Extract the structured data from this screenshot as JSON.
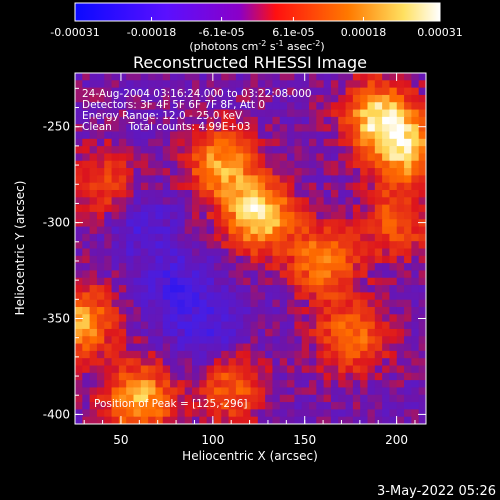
{
  "colorbar": {
    "tick_labels": [
      "-0.00031",
      "-0.00018",
      "-6.1e-05",
      "6.1e-05",
      "0.00018",
      "0.00031"
    ],
    "tick_values": [
      -0.00031,
      -0.00018,
      -6.1e-05,
      6.1e-05,
      0.00018,
      0.00031
    ],
    "min": -0.00031,
    "max": 0.00031,
    "units_base": "(photons cm",
    "units_exp1": "-2",
    "units_mid": " s",
    "units_exp2": "-1",
    "units_end": " asec",
    "units_exp3": "-2",
    "units_close": ")",
    "colors": [
      "#0a0aff",
      "#8a00c8",
      "#ff1010",
      "#ff7a00",
      "#ffffff"
    ]
  },
  "title": "Reconstructed RHESSI Image",
  "annotations": {
    "time_range": "24-Aug-2004 03:16:24.000 to 03:22:08.000",
    "detectors": "Detectors: 3F 4F 5F 6F 7F 8F, Att 0",
    "energy_range": "Energy Range: 12.0 - 25.0 keV",
    "algorithm_counts": "Clean     Total counts: 4.99E+03",
    "peak_position": "Position of Peak = [125,-296]"
  },
  "chart_data": {
    "type": "heatmap",
    "title": "Reconstructed RHESSI Image",
    "xlabel": "Heliocentric X (arcsec)",
    "ylabel": "Heliocentric Y (arcsec)",
    "xlim": [
      25,
      216
    ],
    "ylim": [
      -405,
      -222
    ],
    "x_ticks": [
      50,
      100,
      150,
      200
    ],
    "y_ticks": [
      -250,
      -300,
      -350,
      -400
    ],
    "x_tick_labels": [
      "50",
      "100",
      "150",
      "200"
    ],
    "y_tick_labels": [
      "-250",
      "-300",
      "-350",
      "-400"
    ],
    "value_range": [
      -0.00031,
      0.00031
    ],
    "peak": {
      "x": 125,
      "y": -296,
      "value": 0.00031
    },
    "bright_regions": [
      {
        "x": 125,
        "y": -296,
        "value": 0.00031
      },
      {
        "x": 105,
        "y": -270,
        "value": 0.00024
      },
      {
        "x": 190,
        "y": -245,
        "value": 0.00028
      },
      {
        "x": 205,
        "y": -262,
        "value": 0.00025
      },
      {
        "x": 160,
        "y": -320,
        "value": 0.00022
      },
      {
        "x": 175,
        "y": -360,
        "value": 0.0002
      },
      {
        "x": 60,
        "y": -392,
        "value": 0.00026
      },
      {
        "x": 28,
        "y": -352,
        "value": 0.00024
      },
      {
        "x": 110,
        "y": -385,
        "value": 0.00018
      },
      {
        "x": 40,
        "y": -280,
        "value": 0.00014
      },
      {
        "x": 200,
        "y": -300,
        "value": 0.00016
      }
    ],
    "dim_regions": [
      {
        "x": 80,
        "y": -335,
        "value": -0.00012
      },
      {
        "x": 100,
        "y": -360,
        "value": -0.0001
      },
      {
        "x": 60,
        "y": -300,
        "value": -8e-05
      }
    ]
  },
  "footer": {
    "timestamp": "3-May-2022 05:26"
  }
}
